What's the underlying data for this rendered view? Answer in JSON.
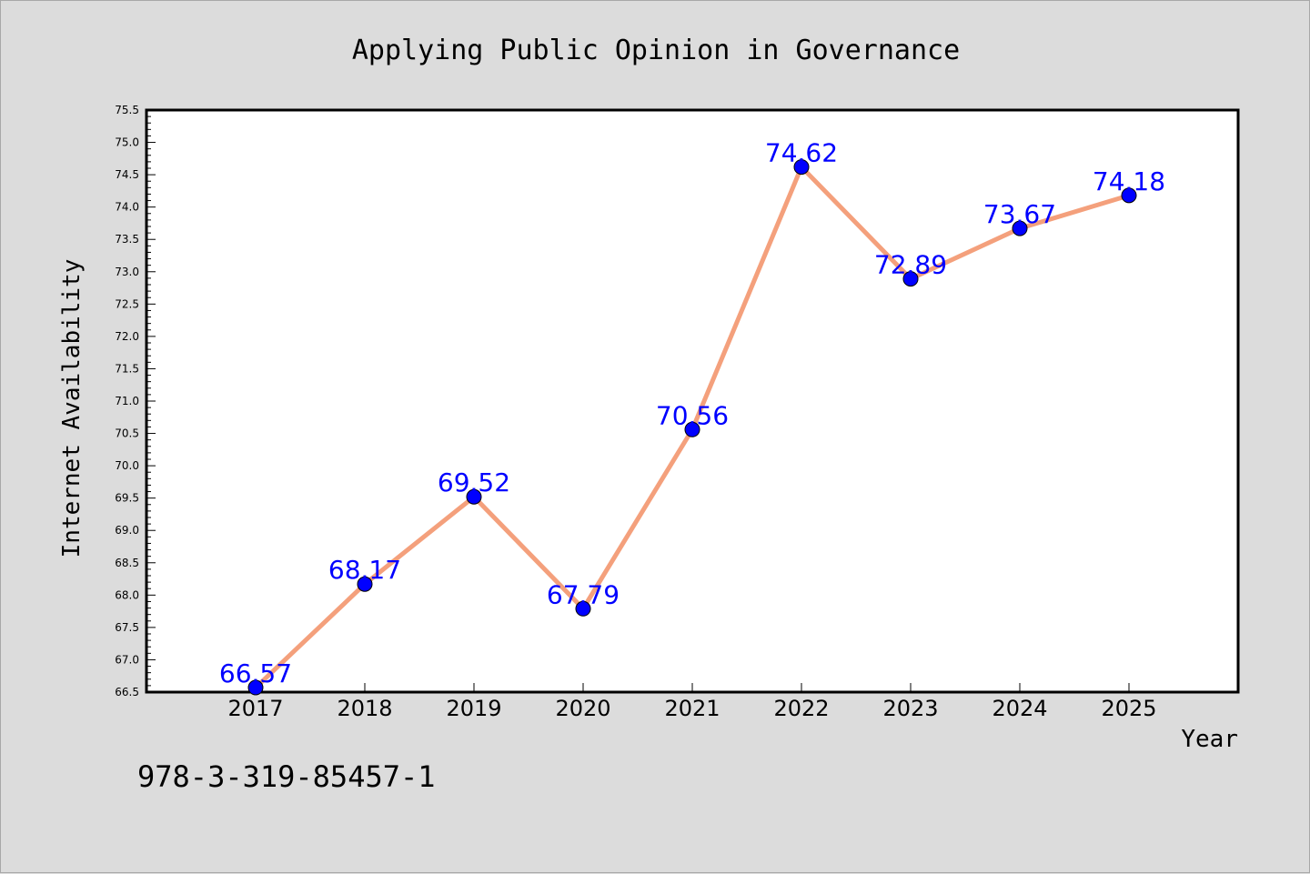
{
  "chart_data": {
    "type": "line",
    "title": "Applying Public Opinion in Governance",
    "xlabel": "Year",
    "ylabel": "Internet Availability",
    "x": [
      "2017",
      "2018",
      "2019",
      "2020",
      "2021",
      "2022",
      "2023",
      "2024",
      "2025"
    ],
    "series": [
      {
        "values": [
          66.57,
          68.17,
          69.52,
          67.79,
          70.56,
          74.62,
          72.89,
          73.67,
          74.18
        ],
        "data_labels": [
          "66.57",
          "68.17",
          "69.52",
          "67.79",
          "70.56",
          "74.62",
          "72.89",
          "73.67",
          "74.18"
        ],
        "line_color": "#f4a07c",
        "marker_color": "#0000ff"
      }
    ],
    "ylim": [
      66.5,
      75.5
    ],
    "yticks": [
      "66.5",
      "67.0",
      "67.5",
      "68.0",
      "68.5",
      "69.0",
      "69.5",
      "70.0",
      "70.5",
      "71.0",
      "71.5",
      "72.0",
      "72.5",
      "73.0",
      "73.5",
      "74.0",
      "74.5",
      "75.0",
      "75.5"
    ],
    "grid": false,
    "legend": "none"
  },
  "footer": {
    "identifier": "978-3-319-85457-1"
  },
  "colors": {
    "background": "#dcdcdc",
    "plot_background": "#ffffff",
    "line": "#f4a07c",
    "marker": "#0000ff",
    "data_label": "#0000ff"
  }
}
